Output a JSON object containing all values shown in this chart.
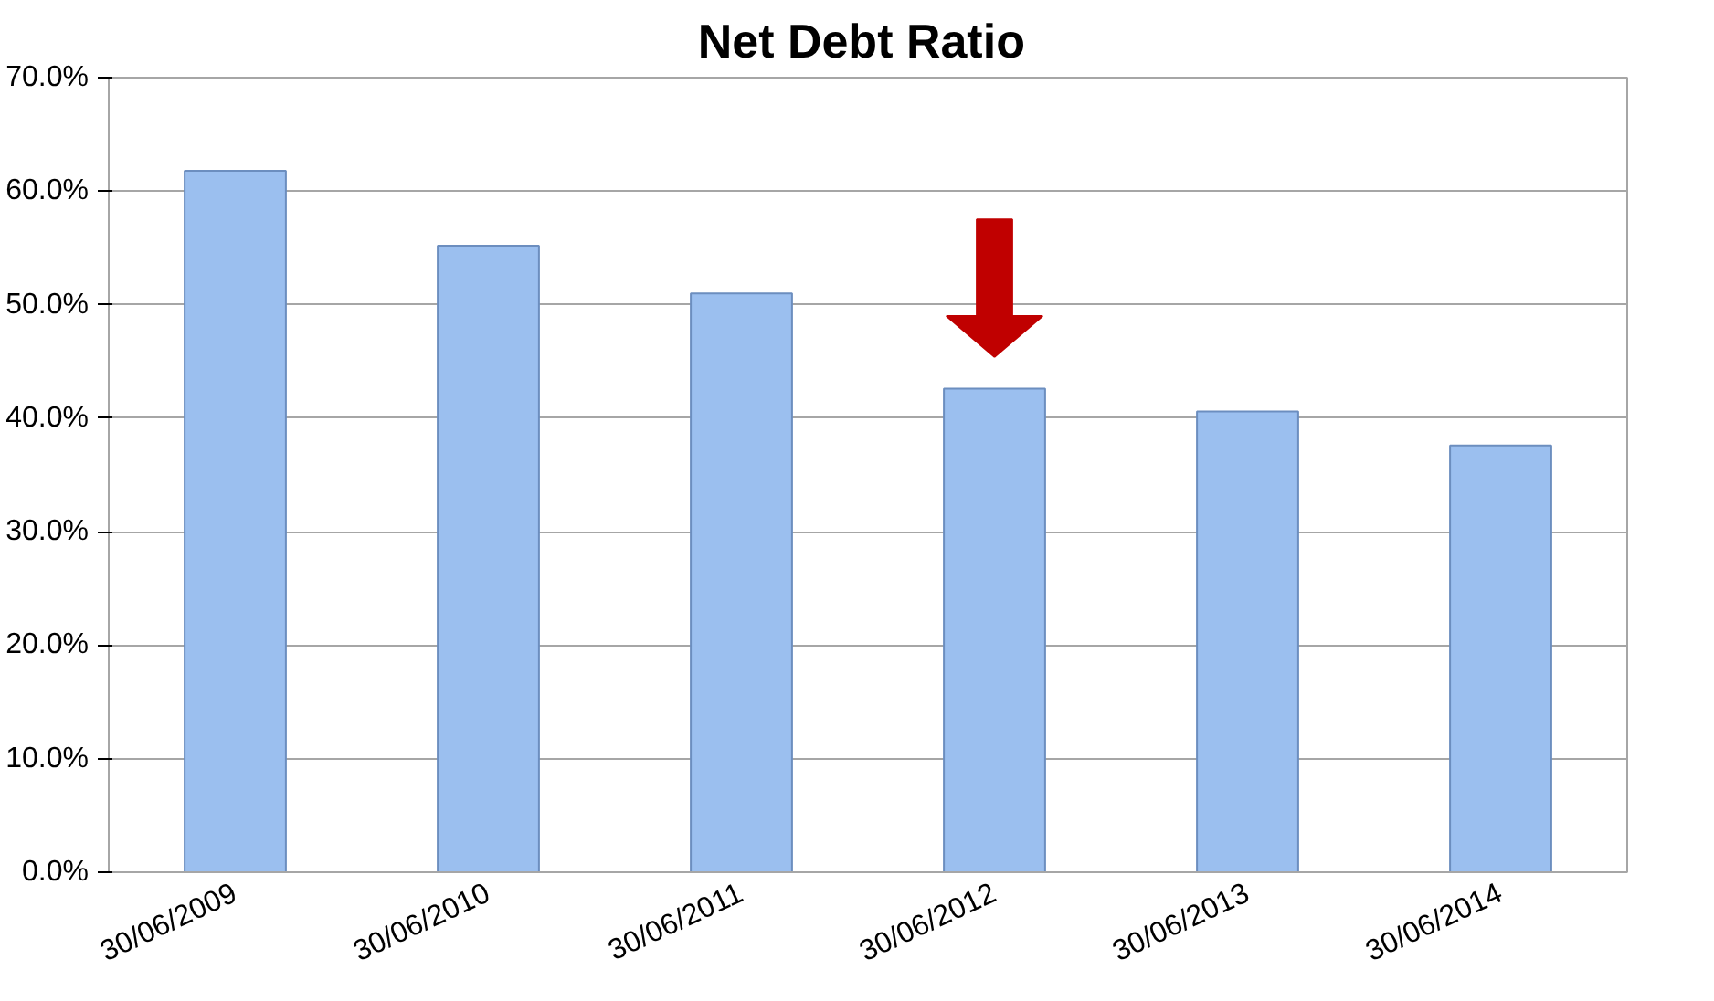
{
  "chart_data": {
    "type": "bar",
    "title": "Net Debt  Ratio",
    "categories": [
      "30/06/2009",
      "30/06/2010",
      "30/06/2011",
      "30/06/2012",
      "30/06/2013",
      "30/06/2014"
    ],
    "values": [
      61.8,
      55.2,
      51.0,
      42.6,
      40.6,
      37.6
    ],
    "color": "#9bbfef",
    "ylim": [
      0,
      70
    ],
    "yticks": [
      {
        "value": 0,
        "label": "0.0%"
      },
      {
        "value": 10,
        "label": "10.0%"
      },
      {
        "value": 20,
        "label": "20.0%"
      },
      {
        "value": 30,
        "label": "30.0%"
      },
      {
        "value": 40,
        "label": "40.0%"
      },
      {
        "value": 50,
        "label": "50.0%"
      },
      {
        "value": 60,
        "label": "60.0%"
      },
      {
        "value": 70,
        "label": "70.0%"
      }
    ],
    "grid": "y"
  }
}
